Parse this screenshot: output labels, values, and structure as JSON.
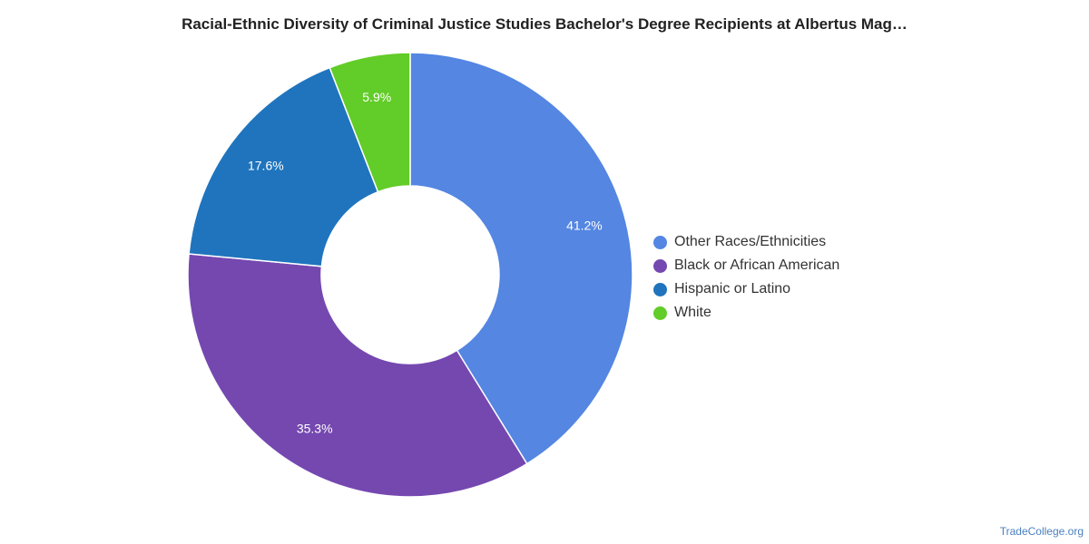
{
  "chart_data": {
    "type": "pie",
    "title": "Racial-Ethnic Diversity of Criminal Justice Studies Bachelor's Degree Recipients at Albertus Mag…",
    "donut": true,
    "categories": [
      "Other Races/Ethnicities",
      "Black or African American",
      "Hispanic or Latino",
      "White"
    ],
    "values": [
      41.2,
      35.3,
      17.6,
      5.9
    ],
    "data_labels": [
      "41.2%",
      "35.3%",
      "17.6%",
      "5.9%"
    ],
    "colors": [
      "#5486e2",
      "#7548b0",
      "#1f74bd",
      "#62cc28"
    ],
    "legend_position": "right"
  },
  "source": "TradeCollege.org"
}
